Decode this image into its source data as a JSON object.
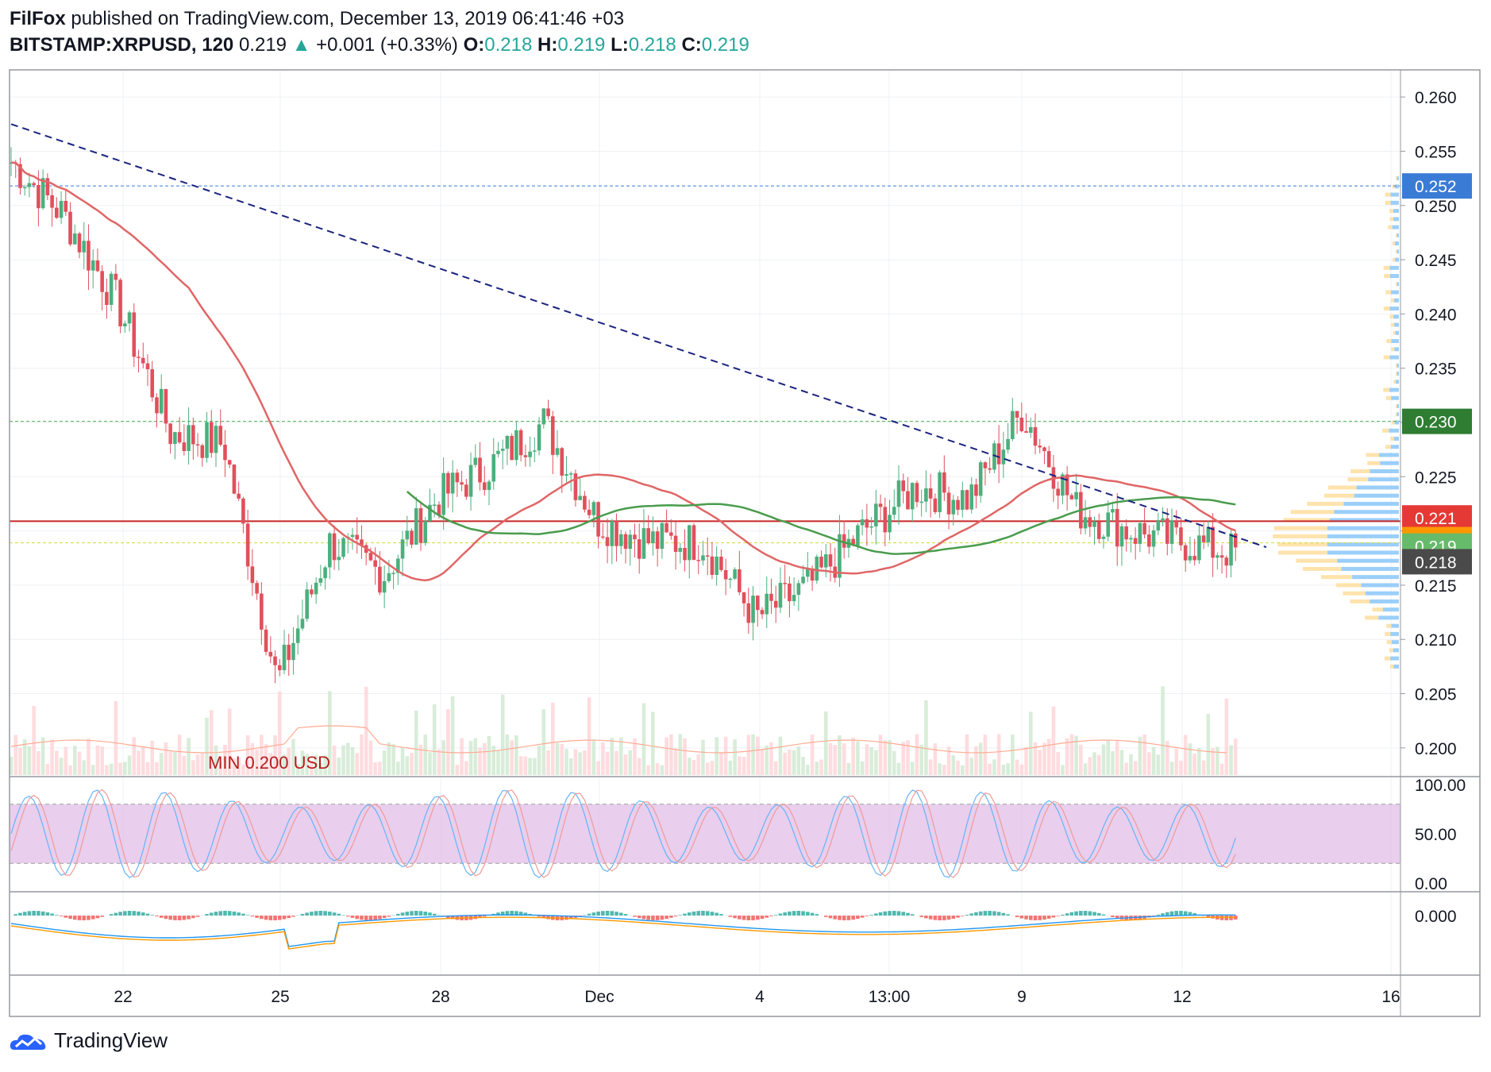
{
  "header": {
    "author": "FilFox",
    "published": "published on TradingView.com, December 13, 2019 06:41:46 +03",
    "symbol": "BITSTAMP:XRPUSD, 120",
    "last": "0.219",
    "change": "+0.001 (+0.33%)",
    "o_label": "O:",
    "o": "0.218",
    "h_label": "H:",
    "h": "0.219",
    "l_label": "L:",
    "l": "0.218",
    "c_label": "C:",
    "c": "0.219"
  },
  "footer": {
    "brand": "TradingView",
    "logo_icon": "tradingview-cloud-icon"
  },
  "colors": {
    "up": "#26a69a",
    "down": "#ef5350",
    "up_candle": "#4caf7d",
    "down_candle": "#e0505c",
    "ma_red": "#e06666",
    "ma_green": "#4a9c4e",
    "trendline": "#1a237e",
    "rsi_band": "#e1bee7",
    "macd_blue": "#2196f3",
    "macd_orange": "#ff9800"
  },
  "chart_data": {
    "type": "line",
    "title": "",
    "xlabel": "",
    "ylabel": "",
    "x_ticks": [
      "22",
      "25",
      "28",
      "Dec",
      "4",
      "13:00",
      "9",
      "12",
      "16"
    ],
    "y_ticks": [
      "0.260",
      "0.255",
      "0.250",
      "0.245",
      "0.240",
      "0.235",
      "0.230",
      "0.225",
      "0.220",
      "0.215",
      "0.210",
      "0.205",
      "0.200"
    ],
    "ylim": [
      0.1975,
      0.2625
    ],
    "series": [
      {
        "role": "price close (approx.)",
        "x": [
          "Nov 20",
          "Nov 21",
          "Nov 22",
          "Nov 23",
          "Nov 24",
          "Nov 25",
          "Nov 26",
          "Nov 27",
          "Nov 28",
          "Nov 29",
          "Nov 30",
          "Dec 1",
          "Dec 2",
          "Dec 3",
          "Dec 4",
          "Dec 5",
          "Dec 6",
          "Dec 7",
          "Dec 8",
          "Dec 9",
          "Dec 10",
          "Dec 11",
          "Dec 12",
          "Dec 13"
        ],
        "values": [
          0.254,
          0.249,
          0.241,
          0.229,
          0.228,
          0.206,
          0.219,
          0.216,
          0.223,
          0.226,
          0.23,
          0.221,
          0.219,
          0.219,
          0.212,
          0.215,
          0.22,
          0.224,
          0.223,
          0.231,
          0.222,
          0.22,
          0.219,
          0.218
        ]
      }
    ],
    "trendline": {
      "from": {
        "x": "Nov 20",
        "y": 0.2575
      },
      "to": {
        "x": "Dec 13",
        "y": 0.2185
      }
    },
    "price_labels": [
      {
        "value": "0.252",
        "color": "#3a7bd5"
      },
      {
        "value": "0.230",
        "color": "#2e7d32"
      },
      {
        "value": "0.221",
        "color": "#e53935"
      },
      {
        "value": "0.219",
        "color": "#ff9800"
      },
      {
        "value": "0.219",
        "color": "#66bb6a"
      },
      {
        "value": "0.218",
        "color": "#4a4a4a"
      }
    ],
    "annotation": "MIN 0.200 USD",
    "rsi": {
      "ticks": [
        "100.00",
        "50.00",
        "0.00"
      ],
      "band": [
        20,
        80
      ]
    },
    "macd": {
      "ticks": [
        "0.000"
      ]
    }
  }
}
